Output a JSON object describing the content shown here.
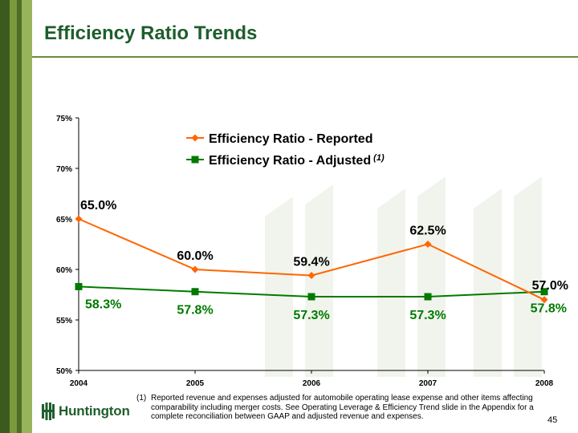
{
  "slide": {
    "title": "Efficiency Ratio Trends",
    "footnote_marker": "(1)",
    "footnote_text": "Reported revenue and expenses adjusted for automobile operating lease expense and other items affecting comparability including merger costs.  See Operating Leverage & Efficiency Trend slide in the Appendix for a complete reconciliation between GAAP and adjusted revenue and expenses.",
    "logo_text": "Huntington",
    "page_number": "45"
  },
  "colors": {
    "title_green": "#1e5e2c",
    "reported": "#ff6600",
    "adjusted": "#007a00",
    "sidebar_dark": "#3b5a1e",
    "sidebar_light": "#7a9a3c"
  },
  "chart_data": {
    "type": "line",
    "x": [
      "2004",
      "2005",
      "2006",
      "2007",
      "2008"
    ],
    "yticks": [
      "50%",
      "55%",
      "60%",
      "65%",
      "70%",
      "75%"
    ],
    "ylim": [
      50,
      75
    ],
    "legend_position": "top-center",
    "grid": false,
    "series": [
      {
        "name": "Efficiency Ratio - Reported",
        "marker": "diamond",
        "color": "#ff6600",
        "values": [
          65.0,
          60.0,
          59.4,
          62.5,
          57.0
        ],
        "labels": [
          "65.0%",
          "60.0%",
          "59.4%",
          "62.5%",
          "57.0%"
        ]
      },
      {
        "name": "Efficiency Ratio - Adjusted",
        "name_note": "(1)",
        "marker": "square",
        "color": "#007a00",
        "values": [
          58.3,
          57.8,
          57.3,
          57.3,
          57.8
        ],
        "labels": [
          "58.3%",
          "57.8%",
          "57.3%",
          "57.3%",
          "57.8%"
        ]
      }
    ]
  }
}
